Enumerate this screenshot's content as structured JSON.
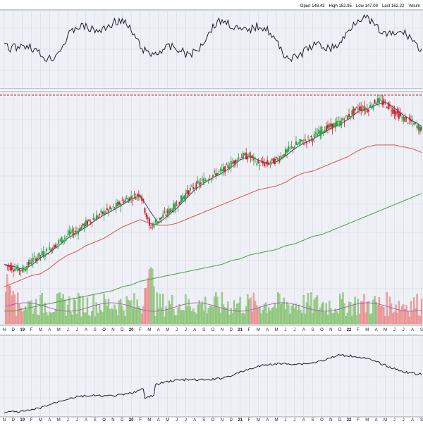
{
  "header": {
    "open_label": "Open",
    "open_value": "148.43",
    "high_label": "High",
    "high_value": "152.95",
    "low_label": "Low",
    "low_value": "147.09",
    "last_label": "Last",
    "last_value": "162.22",
    "volume_label": "Volum"
  },
  "colors": {
    "panel_bg": "#eef0f6",
    "grid": "#d4d8e2",
    "up_candle": "#2e9d3f",
    "down_candle": "#c8222b",
    "ma_short": "#3a3f8c",
    "ma_mid": "#d9534f",
    "ma_long": "#4f9a4a",
    "volume_up": "#9fd08e",
    "volume_down": "#f0a3a3",
    "volume_avg": "#9a4fb5",
    "resistance_line": "#b3201e",
    "indicator_line": "#1b1e2b"
  },
  "x_axis": {
    "labels": [
      "N",
      "D",
      "19",
      "F",
      "M",
      "A",
      "M",
      "J",
      "J",
      "A",
      "S",
      "O",
      "N",
      "D",
      "20",
      "F",
      "M",
      "A",
      "M",
      "J",
      "J",
      "A",
      "S",
      "O",
      "N",
      "D",
      "21",
      "F",
      "M",
      "A",
      "M",
      "J",
      "J",
      "A",
      "S",
      "O",
      "N",
      "D",
      "22",
      "F",
      "M",
      "A",
      "M",
      "J",
      "J",
      "A",
      "S"
    ]
  },
  "chart_data": {
    "type": "line",
    "x": [
      "2018-11",
      "2018-12",
      "2019-01",
      "2019-02",
      "2019-03",
      "2019-04",
      "2019-05",
      "2019-06",
      "2019-07",
      "2019-08",
      "2019-09",
      "2019-10",
      "2019-11",
      "2019-12",
      "2020-01",
      "2020-02",
      "2020-03",
      "2020-04",
      "2020-05",
      "2020-06",
      "2020-07",
      "2020-08",
      "2020-09",
      "2020-10",
      "2020-11",
      "2020-12",
      "2021-01",
      "2021-02",
      "2021-03",
      "2021-04",
      "2021-05",
      "2021-06",
      "2021-07",
      "2021-08",
      "2021-09",
      "2021-10",
      "2021-11",
      "2021-12",
      "2022-01",
      "2022-02",
      "2022-03",
      "2022-04",
      "2022-05",
      "2022-06",
      "2022-07",
      "2022-08",
      "2022-09"
    ],
    "series": [
      {
        "values": [
          50,
          48,
          47,
          52,
          55,
          58,
          62,
          66,
          68,
          72,
          75,
          78,
          80,
          84,
          86,
          88,
          70,
          74,
          78,
          82,
          88,
          92,
          95,
          98,
          100,
          104,
          108,
          108,
          104,
          104,
          106,
          110,
          114,
          116,
          118,
          122,
          124,
          126,
          130,
          134,
          133,
          138,
          136,
          132,
          128,
          126,
          122
        ]
      },
      {
        "values": [
          38,
          40,
          42,
          44,
          45,
          48,
          52,
          55,
          57,
          60,
          62,
          64,
          67,
          70,
          72,
          74,
          72,
          71,
          71,
          72,
          74,
          76,
          78,
          80,
          82,
          84,
          86,
          88,
          90,
          91,
          92,
          94,
          97,
          99,
          100,
          102,
          104,
          106,
          108,
          111,
          113,
          114,
          114,
          114,
          113,
          112,
          110
        ]
      },
      {
        "values": [
          25,
          25,
          26,
          27,
          28,
          29,
          30,
          31,
          32,
          33,
          34,
          35,
          36,
          38,
          39,
          41,
          42,
          43,
          44,
          45,
          46,
          47,
          48,
          49,
          50,
          52,
          53,
          55,
          56,
          57,
          58,
          60,
          61,
          63,
          65,
          66,
          68,
          70,
          72,
          74,
          76,
          78,
          80,
          82,
          84,
          86,
          88
        ]
      }
    ]
  }
}
